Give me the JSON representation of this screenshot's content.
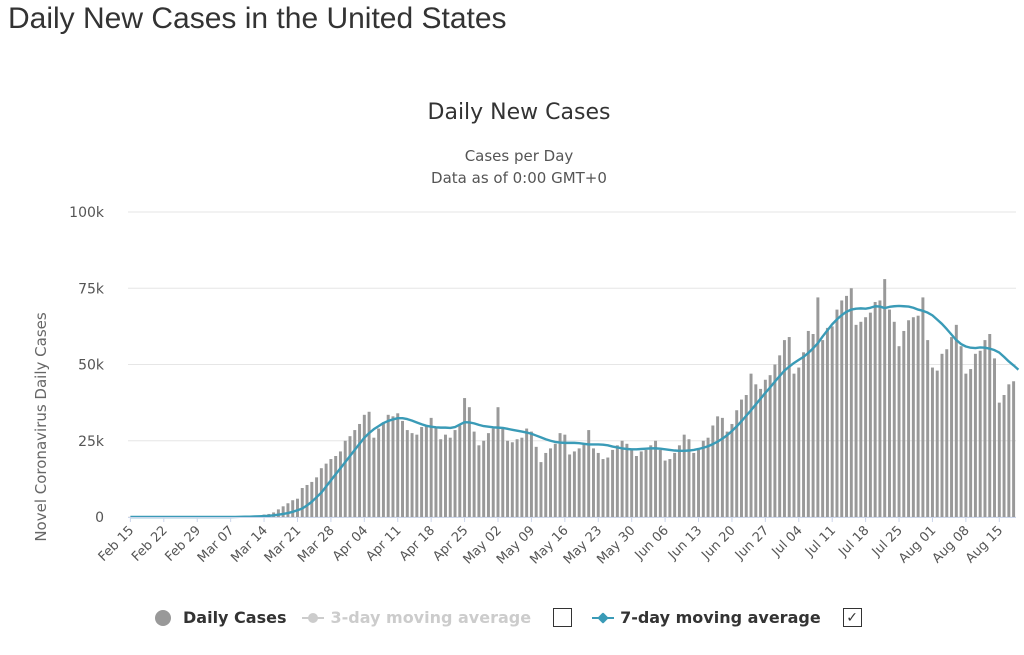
{
  "page_title": "Daily New Cases in the United States",
  "legend": {
    "daily_cases": "Daily Cases",
    "ma3": "3-day moving average",
    "ma7": "7-day moving average",
    "ma3_checked": false,
    "ma7_checked": true
  },
  "colors": {
    "bars": "#999999",
    "ma7_line": "#3a9bb7",
    "grid": "#e6e6e6"
  },
  "chart_data": {
    "type": "bar",
    "title": "Daily New Cases",
    "subtitle_lines": [
      "Cases per Day",
      "Data as of 0:00 GMT+0"
    ],
    "ylabel": "Novel Coronavirus Daily Cases",
    "xlabel": "",
    "ylim": [
      0,
      100000
    ],
    "yticks": [
      0,
      25000,
      50000,
      75000,
      100000
    ],
    "ytick_labels": [
      "0",
      "25k",
      "50k",
      "75k",
      "100k"
    ],
    "x_start": "2020-02-15",
    "xtick_labels": [
      "Feb 15",
      "Feb 22",
      "Feb 29",
      "Mar 07",
      "Mar 14",
      "Mar 21",
      "Mar 28",
      "Apr 04",
      "Apr 11",
      "Apr 18",
      "Apr 25",
      "May 02",
      "May 09",
      "May 16",
      "May 23",
      "May 30",
      "Jun 06",
      "Jun 13",
      "Jun 20",
      "Jun 27",
      "Jul 04",
      "Jul 11",
      "Jul 18",
      "Jul 25",
      "Aug 01",
      "Aug 08",
      "Aug 15"
    ],
    "grid": true,
    "legend_position": "bottom",
    "series": [
      {
        "name": "Daily Cases",
        "type": "bar",
        "values": [
          0,
          0,
          0,
          0,
          0,
          0,
          0,
          0,
          0,
          0,
          0,
          0,
          0,
          0,
          0,
          0,
          0,
          0,
          0,
          0,
          20,
          60,
          80,
          150,
          200,
          300,
          400,
          500,
          800,
          1000,
          1500,
          2500,
          3500,
          4500,
          5500,
          6000,
          9500,
          10500,
          11500,
          13000,
          16000,
          17500,
          19000,
          20000,
          21500,
          25000,
          26500,
          28500,
          30500,
          33500,
          34500,
          26000,
          29000,
          31000,
          33500,
          33000,
          34000,
          31500,
          28500,
          27500,
          27000,
          29500,
          30000,
          32500,
          29500,
          25500,
          27000,
          26000,
          28500,
          30000,
          39000,
          36000,
          28000,
          23500,
          25000,
          27500,
          29000,
          36000,
          29000,
          25000,
          24500,
          25500,
          26000,
          29000,
          28000,
          23000,
          18000,
          21000,
          22500,
          24000,
          27500,
          27000,
          20500,
          21500,
          22500,
          24000,
          28500,
          22500,
          21000,
          19000,
          19500,
          22000,
          23500,
          25000,
          24000,
          22000,
          20000,
          21500,
          22000,
          23500,
          25000,
          22000,
          18500,
          19000,
          21000,
          23500,
          27000,
          25500,
          21000,
          22000,
          25000,
          26000,
          30000,
          33000,
          32500,
          28000,
          30500,
          35000,
          38500,
          40000,
          47000,
          43500,
          42000,
          45000,
          46500,
          50000,
          53000,
          58000,
          59000,
          47000,
          49000,
          54000,
          61000,
          60000,
          72000,
          58000,
          62000,
          62500,
          68000,
          71000,
          72500,
          75000,
          63000,
          64000,
          65500,
          67000,
          70500,
          71000,
          78000,
          68000,
          64000,
          56000,
          61000,
          64500,
          65500,
          66000,
          72000,
          58000,
          49000,
          48000,
          53500,
          55000,
          59000,
          63000,
          56000,
          47000,
          48500,
          53500,
          54500,
          58000,
          60000,
          52000,
          37500,
          40000,
          43500,
          44500
        ]
      },
      {
        "name": "7-day moving average",
        "type": "line",
        "values": [
          0,
          0,
          0,
          0,
          0,
          0,
          0,
          0,
          0,
          0,
          0,
          0,
          0,
          0,
          0,
          0,
          0,
          0,
          0,
          0,
          0,
          0,
          30,
          50,
          80,
          110,
          160,
          220,
          300,
          400,
          550,
          750,
          1000,
          1300,
          1700,
          2200,
          2800,
          3800,
          5000,
          6500,
          8000,
          10000,
          12000,
          14000,
          16000,
          18000,
          20000,
          22000,
          24000,
          26000,
          27500,
          28800,
          29800,
          30800,
          31500,
          32000,
          32400,
          32400,
          32100,
          31600,
          31000,
          30400,
          29900,
          29600,
          29400,
          29300,
          29300,
          29200,
          29500,
          30300,
          31100,
          31000,
          30700,
          30200,
          29800,
          29600,
          29400,
          29300,
          29200,
          28900,
          28600,
          28300,
          28000,
          27700,
          27300,
          26700,
          26100,
          25500,
          25000,
          24600,
          24400,
          24300,
          24300,
          24300,
          24200,
          24000,
          23800,
          23800,
          23800,
          23700,
          23500,
          23100,
          22800,
          22500,
          22300,
          22200,
          22200,
          22300,
          22400,
          22500,
          22500,
          22400,
          22200,
          22000,
          21800,
          21700,
          21700,
          21800,
          22000,
          22300,
          22700,
          23200,
          23900,
          24700,
          25700,
          26800,
          28200,
          29700,
          31400,
          33200,
          35000,
          36900,
          38800,
          40700,
          42500,
          44400,
          46200,
          48000,
          49300,
          50500,
          51500,
          52500,
          53800,
          55300,
          57000,
          59200,
          61200,
          63200,
          64800,
          66200,
          67300,
          68000,
          68300,
          68400,
          68300,
          68600,
          69100,
          69000,
          68500,
          68900,
          69100,
          69200,
          69100,
          69000,
          68600,
          68000,
          67600,
          67000,
          66100,
          64700,
          63300,
          61600,
          59800,
          58000,
          56700,
          55900,
          55500,
          55400,
          55600,
          55500,
          55200,
          54700,
          53900,
          52500,
          51000,
          49700,
          48300
        ]
      }
    ]
  }
}
